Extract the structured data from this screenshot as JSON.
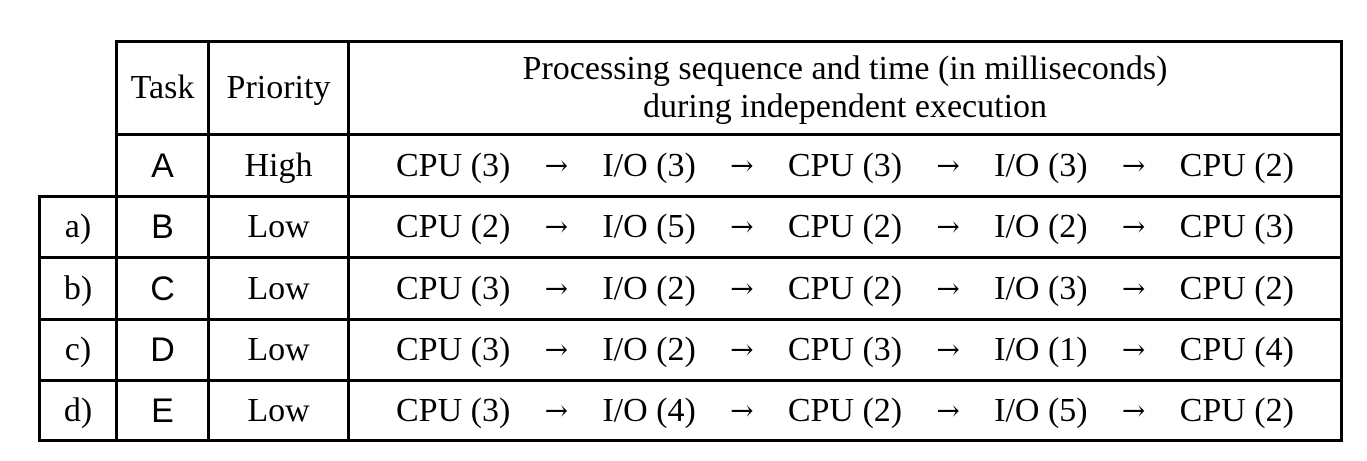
{
  "headers": {
    "task": "Task",
    "priority": "Priority",
    "sequence_line1": "Processing sequence and time (in milliseconds)",
    "sequence_line2": "during independent execution"
  },
  "arrow_glyph": "→",
  "rows": [
    {
      "option": "",
      "task": "A",
      "priority": "High",
      "steps": [
        "CPU (3)",
        "I/O (3)",
        "CPU (3)",
        "I/O (3)",
        "CPU (2)"
      ]
    },
    {
      "option": "a)",
      "task": "B",
      "priority": "Low",
      "steps": [
        "CPU (2)",
        "I/O (5)",
        "CPU (2)",
        "I/O (2)",
        "CPU (3)"
      ]
    },
    {
      "option": "b)",
      "task": "C",
      "priority": "Low",
      "steps": [
        "CPU (3)",
        "I/O (2)",
        "CPU (2)",
        "I/O (3)",
        "CPU (2)"
      ]
    },
    {
      "option": "c)",
      "task": "D",
      "priority": "Low",
      "steps": [
        "CPU (3)",
        "I/O (2)",
        "CPU (3)",
        "I/O (1)",
        "CPU (4)"
      ]
    },
    {
      "option": "d)",
      "task": "E",
      "priority": "Low",
      "steps": [
        "CPU (3)",
        "I/O (4)",
        "CPU (2)",
        "I/O (5)",
        "CPU (2)"
      ]
    }
  ]
}
